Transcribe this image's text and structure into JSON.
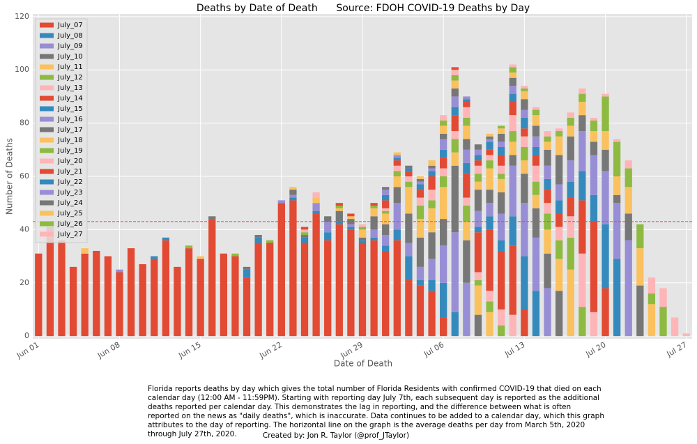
{
  "chart_data": {
    "type": "stacked_bar",
    "title": "Deaths by Date of Death      Source: FDOH COVID-19 Deaths by Day",
    "xlabel": "Date of Death",
    "ylabel": "Number of Deaths",
    "categories": [
      "Jun 01",
      null,
      null,
      null,
      null,
      null,
      null,
      "Jun 08",
      null,
      null,
      null,
      null,
      null,
      null,
      "Jun 15",
      null,
      null,
      null,
      null,
      null,
      null,
      "Jun 22",
      null,
      null,
      null,
      null,
      null,
      null,
      "Jun 29",
      null,
      null,
      null,
      null,
      null,
      null,
      "Jul 06",
      null,
      null,
      null,
      null,
      null,
      null,
      "Jul 13",
      null,
      null,
      null,
      null,
      null,
      null,
      "Jul 20",
      null,
      null,
      null,
      null,
      null,
      null,
      "Jul 27"
    ],
    "ylim": [
      -1,
      121
    ],
    "yticks": [
      0,
      20,
      40,
      60,
      80,
      100,
      120
    ],
    "grid": true,
    "legend": "upper-left",
    "average_line": 43,
    "average_color": "#E24A33",
    "series": [
      {
        "name": "July_07",
        "color": "#E24A33",
        "values": [
          31,
          41,
          36,
          26,
          31,
          32,
          30,
          24,
          33,
          27,
          29,
          36,
          26,
          33,
          29,
          44,
          31,
          30,
          22,
          35,
          35,
          50,
          51,
          35,
          46,
          36,
          42,
          40,
          35,
          36,
          32,
          36,
          21,
          19,
          17,
          7,
          0,
          0,
          0,
          0,
          0,
          0,
          0,
          0,
          0,
          0,
          0,
          0,
          0,
          0,
          0,
          0,
          0,
          0,
          0,
          0,
          0
        ]
      },
      {
        "name": "July_08",
        "color": "#348ABD",
        "values": [
          0,
          0,
          0,
          0,
          0,
          0,
          0,
          0,
          0,
          0,
          1,
          1,
          0,
          0,
          0,
          0,
          0,
          0,
          3,
          2,
          0,
          0,
          1,
          2,
          1,
          3,
          1,
          1,
          1,
          1,
          2,
          4,
          9,
          2,
          4,
          13,
          9,
          0,
          0,
          0,
          0,
          0,
          0,
          0,
          0,
          0,
          0,
          0,
          0,
          0,
          0,
          0,
          0,
          0,
          0,
          0,
          0
        ]
      },
      {
        "name": "July_09",
        "color": "#988ED5",
        "values": [
          0,
          0,
          0,
          0,
          0,
          0,
          0,
          1,
          0,
          0,
          0,
          0,
          0,
          0,
          0,
          0,
          0,
          0,
          0,
          0,
          0,
          1,
          1,
          0,
          3,
          4,
          0,
          1,
          0,
          3,
          4,
          10,
          5,
          5,
          8,
          14,
          30,
          20,
          0,
          0,
          0,
          0,
          0,
          0,
          0,
          0,
          0,
          0,
          0,
          0,
          0,
          0,
          0,
          0,
          0,
          0,
          0
        ]
      },
      {
        "name": "July_10",
        "color": "#777777",
        "values": [
          0,
          0,
          0,
          0,
          0,
          0,
          0,
          0,
          0,
          0,
          0,
          0,
          0,
          0,
          0,
          1,
          0,
          0,
          1,
          1,
          0,
          0,
          2,
          1,
          0,
          2,
          4,
          2,
          1,
          5,
          4,
          6,
          11,
          11,
          10,
          10,
          25,
          16,
          8,
          0,
          0,
          0,
          0,
          0,
          0,
          0,
          0,
          0,
          0,
          0,
          0,
          0,
          0,
          0,
          0,
          0,
          0
        ]
      },
      {
        "name": "July_11",
        "color": "#FBC15E",
        "values": [
          0,
          0,
          0,
          0,
          2,
          0,
          0,
          0,
          0,
          0,
          0,
          0,
          0,
          0,
          1,
          0,
          0,
          0,
          0,
          0,
          0,
          0,
          1,
          0,
          2,
          0,
          1,
          1,
          3,
          3,
          4,
          4,
          10,
          7,
          9,
          12,
          5,
          7,
          11,
          9,
          0,
          0,
          0,
          0,
          0,
          0,
          0,
          0,
          0,
          0,
          0,
          0,
          0,
          0,
          0,
          0,
          0
        ]
      },
      {
        "name": "July_12",
        "color": "#8EBA42",
        "values": [
          0,
          0,
          0,
          0,
          0,
          0,
          0,
          0,
          0,
          0,
          0,
          0,
          0,
          1,
          0,
          0,
          0,
          1,
          0,
          0,
          1,
          0,
          0,
          1,
          0,
          0,
          1,
          0,
          1,
          1,
          1,
          2,
          2,
          5,
          3,
          4,
          5,
          6,
          2,
          4,
          4,
          0,
          0,
          0,
          0,
          0,
          0,
          0,
          0,
          0,
          0,
          0,
          0,
          0,
          0,
          0,
          0
        ]
      },
      {
        "name": "July_13",
        "color": "#FFB5B8",
        "values": [
          0,
          0,
          0,
          0,
          0,
          0,
          0,
          0,
          0,
          0,
          0,
          0,
          0,
          0,
          0,
          0,
          0,
          0,
          0,
          0,
          0,
          0,
          0,
          1,
          2,
          0,
          0,
          0,
          1,
          0,
          1,
          2,
          2,
          3,
          4,
          3,
          3,
          3,
          3,
          4,
          6,
          8,
          0,
          0,
          0,
          0,
          0,
          0,
          0,
          0,
          0,
          0,
          0,
          0,
          0,
          0,
          0
        ]
      },
      {
        "name": "July_14",
        "color": "#E24A33",
        "values": [
          0,
          0,
          0,
          0,
          0,
          0,
          0,
          0,
          0,
          0,
          0,
          0,
          0,
          0,
          0,
          0,
          0,
          0,
          0,
          0,
          0,
          0,
          0,
          1,
          0,
          0,
          1,
          1,
          0,
          1,
          3,
          2,
          2,
          3,
          5,
          4,
          6,
          9,
          15,
          23,
          22,
          26,
          10,
          0,
          0,
          0,
          0,
          0,
          0,
          0,
          0,
          0,
          0,
          0,
          0,
          0,
          0
        ]
      },
      {
        "name": "July_15",
        "color": "#348ABD",
        "values": [
          0,
          0,
          0,
          0,
          0,
          0,
          0,
          0,
          0,
          0,
          0,
          0,
          0,
          0,
          0,
          0,
          0,
          0,
          0,
          0,
          0,
          0,
          0,
          0,
          0,
          0,
          0,
          0,
          0,
          0,
          2,
          1,
          1,
          2,
          2,
          3,
          3,
          4,
          2,
          5,
          4,
          11,
          20,
          17,
          0,
          0,
          0,
          0,
          0,
          0,
          0,
          0,
          0,
          0,
          0,
          0,
          0
        ]
      },
      {
        "name": "July_16",
        "color": "#988ED5",
        "values": [
          0,
          0,
          0,
          0,
          0,
          0,
          0,
          0,
          0,
          0,
          0,
          0,
          0,
          0,
          0,
          0,
          0,
          0,
          0,
          0,
          0,
          0,
          0,
          0,
          0,
          0,
          0,
          0,
          0,
          0,
          2,
          1,
          0,
          1,
          1,
          4,
          4,
          5,
          6,
          5,
          10,
          19,
          20,
          20,
          18,
          0,
          0,
          0,
          0,
          0,
          0,
          0,
          0,
          0,
          0,
          0,
          0
        ]
      },
      {
        "name": "July_17",
        "color": "#777777",
        "values": [
          0,
          0,
          0,
          0,
          0,
          0,
          0,
          0,
          0,
          0,
          0,
          0,
          0,
          0,
          0,
          0,
          0,
          0,
          0,
          0,
          0,
          0,
          0,
          0,
          0,
          0,
          0,
          0,
          0,
          0,
          1,
          0,
          1,
          1,
          1,
          2,
          3,
          4,
          8,
          5,
          8,
          4,
          11,
          11,
          13,
          17,
          0,
          0,
          0,
          0,
          0,
          0,
          0,
          0,
          0,
          0,
          0
        ]
      },
      {
        "name": "July_18",
        "color": "#FBC15E",
        "values": [
          0,
          0,
          0,
          0,
          0,
          0,
          0,
          0,
          0,
          0,
          0,
          0,
          0,
          0,
          0,
          0,
          0,
          0,
          0,
          0,
          0,
          0,
          0,
          0,
          0,
          0,
          0,
          0,
          0,
          0,
          0,
          1,
          0,
          1,
          2,
          3,
          3,
          5,
          3,
          8,
          5,
          5,
          5,
          5,
          9,
          12,
          25,
          0,
          0,
          0,
          0,
          0,
          0,
          0,
          0,
          0,
          0
        ]
      },
      {
        "name": "July_19",
        "color": "#8EBA42",
        "values": [
          0,
          0,
          0,
          0,
          0,
          0,
          0,
          0,
          0,
          0,
          0,
          0,
          0,
          0,
          0,
          0,
          0,
          0,
          0,
          0,
          0,
          0,
          0,
          0,
          0,
          0,
          0,
          0,
          0,
          0,
          0,
          0,
          0,
          0,
          0,
          2,
          2,
          3,
          3,
          3,
          2,
          4,
          5,
          5,
          6,
          7,
          12,
          11,
          0,
          0,
          0,
          0,
          0,
          0,
          0,
          0,
          0
        ]
      },
      {
        "name": "July_20",
        "color": "#FFB5B8",
        "values": [
          0,
          0,
          0,
          0,
          0,
          0,
          0,
          0,
          0,
          0,
          0,
          0,
          0,
          0,
          0,
          0,
          0,
          0,
          0,
          0,
          0,
          0,
          0,
          0,
          0,
          0,
          0,
          0,
          0,
          0,
          0,
          0,
          0,
          0,
          0,
          2,
          2,
          4,
          3,
          2,
          3,
          6,
          4,
          6,
          4,
          5,
          8,
          20,
          9,
          0,
          0,
          0,
          0,
          0,
          0,
          0,
          0
        ]
      },
      {
        "name": "July_21",
        "color": "#E24A33",
        "values": [
          0,
          0,
          0,
          0,
          0,
          0,
          0,
          0,
          0,
          0,
          0,
          0,
          0,
          0,
          0,
          0,
          0,
          0,
          0,
          0,
          0,
          0,
          0,
          0,
          0,
          0,
          0,
          0,
          0,
          0,
          0,
          0,
          0,
          0,
          0,
          0,
          1,
          2,
          2,
          2,
          4,
          5,
          3,
          4,
          5,
          5,
          7,
          20,
          34,
          18,
          0,
          0,
          0,
          0,
          0,
          0,
          0
        ]
      },
      {
        "name": "July_22",
        "color": "#348ABD",
        "values": [
          0,
          0,
          0,
          0,
          0,
          0,
          0,
          0,
          0,
          0,
          0,
          0,
          0,
          0,
          0,
          0,
          0,
          0,
          0,
          0,
          0,
          0,
          0,
          0,
          0,
          0,
          0,
          0,
          0,
          0,
          0,
          0,
          0,
          0,
          0,
          0,
          0,
          1,
          2,
          3,
          3,
          3,
          4,
          3,
          4,
          5,
          6,
          11,
          10,
          24,
          29,
          0,
          0,
          0,
          0,
          0,
          0
        ]
      },
      {
        "name": "July_23",
        "color": "#988ED5",
        "values": [
          0,
          0,
          0,
          0,
          0,
          0,
          0,
          0,
          0,
          0,
          0,
          0,
          0,
          0,
          0,
          0,
          0,
          0,
          0,
          0,
          0,
          0,
          0,
          0,
          0,
          0,
          0,
          0,
          0,
          0,
          0,
          0,
          0,
          0,
          0,
          0,
          0,
          1,
          2,
          1,
          2,
          3,
          3,
          4,
          5,
          6,
          8,
          15,
          15,
          20,
          21,
          36,
          0,
          0,
          0,
          0,
          0
        ]
      },
      {
        "name": "July_24",
        "color": "#777777",
        "values": [
          0,
          0,
          0,
          0,
          0,
          0,
          0,
          0,
          0,
          0,
          0,
          0,
          0,
          0,
          0,
          0,
          0,
          0,
          0,
          0,
          0,
          0,
          0,
          0,
          0,
          0,
          0,
          0,
          0,
          0,
          0,
          0,
          0,
          0,
          0,
          0,
          0,
          0,
          2,
          1,
          3,
          3,
          4,
          4,
          6,
          11,
          9,
          6,
          5,
          8,
          3,
          10,
          19,
          0,
          0,
          0,
          0
        ]
      },
      {
        "name": "July_25",
        "color": "#FBC15E",
        "values": [
          0,
          0,
          0,
          0,
          0,
          0,
          0,
          0,
          0,
          0,
          0,
          0,
          0,
          0,
          0,
          0,
          0,
          0,
          0,
          0,
          0,
          0,
          0,
          0,
          0,
          0,
          0,
          0,
          0,
          0,
          0,
          0,
          0,
          0,
          0,
          0,
          0,
          0,
          0,
          1,
          2,
          2,
          3,
          4,
          3,
          7,
          4,
          5,
          4,
          7,
          7,
          10,
          14,
          12,
          0,
          0,
          0
        ]
      },
      {
        "name": "July_26",
        "color": "#8EBA42",
        "values": [
          0,
          0,
          0,
          0,
          0,
          0,
          0,
          0,
          0,
          0,
          0,
          0,
          0,
          0,
          0,
          0,
          0,
          0,
          0,
          0,
          0,
          0,
          0,
          0,
          0,
          0,
          0,
          0,
          0,
          0,
          0,
          0,
          0,
          0,
          0,
          0,
          0,
          0,
          0,
          0,
          1,
          2,
          1,
          2,
          2,
          2,
          3,
          3,
          4,
          13,
          13,
          7,
          9,
          4,
          11,
          0,
          0
        ]
      },
      {
        "name": "July_27",
        "color": "#FFB5B8",
        "values": [
          0,
          0,
          0,
          0,
          0,
          0,
          0,
          0,
          0,
          0,
          0,
          0,
          0,
          0,
          0,
          0,
          0,
          0,
          0,
          0,
          0,
          0,
          0,
          0,
          0,
          0,
          0,
          0,
          0,
          0,
          0,
          0,
          0,
          0,
          0,
          0,
          0,
          0,
          0,
          0,
          0,
          1,
          1,
          1,
          2,
          1,
          2,
          2,
          1,
          1,
          1,
          3,
          0,
          6,
          7,
          7,
          1
        ]
      }
    ]
  },
  "caption": "Florida reports deaths by day which gives the total number of Florida Residents with confirmed COVID-19 that died on each calendar day (12:00 AM - 11:59PM). Starting with reporting day July 7th, each subsequent day is reported as the additional deaths reported per calendar day. This demonstrates the lag in reporting, and the difference between what is often reported on the news as \"daily deaths\", which is inaccurate. Data continues to be added to a calendar day, which this graph attributes to the day of reporting. The horizontal line on the graph is the average deaths per day from March 5th, 2020 through July 27th, 2020.",
  "credit": "Created by: Jon R. Taylor (@prof_JTaylor)"
}
